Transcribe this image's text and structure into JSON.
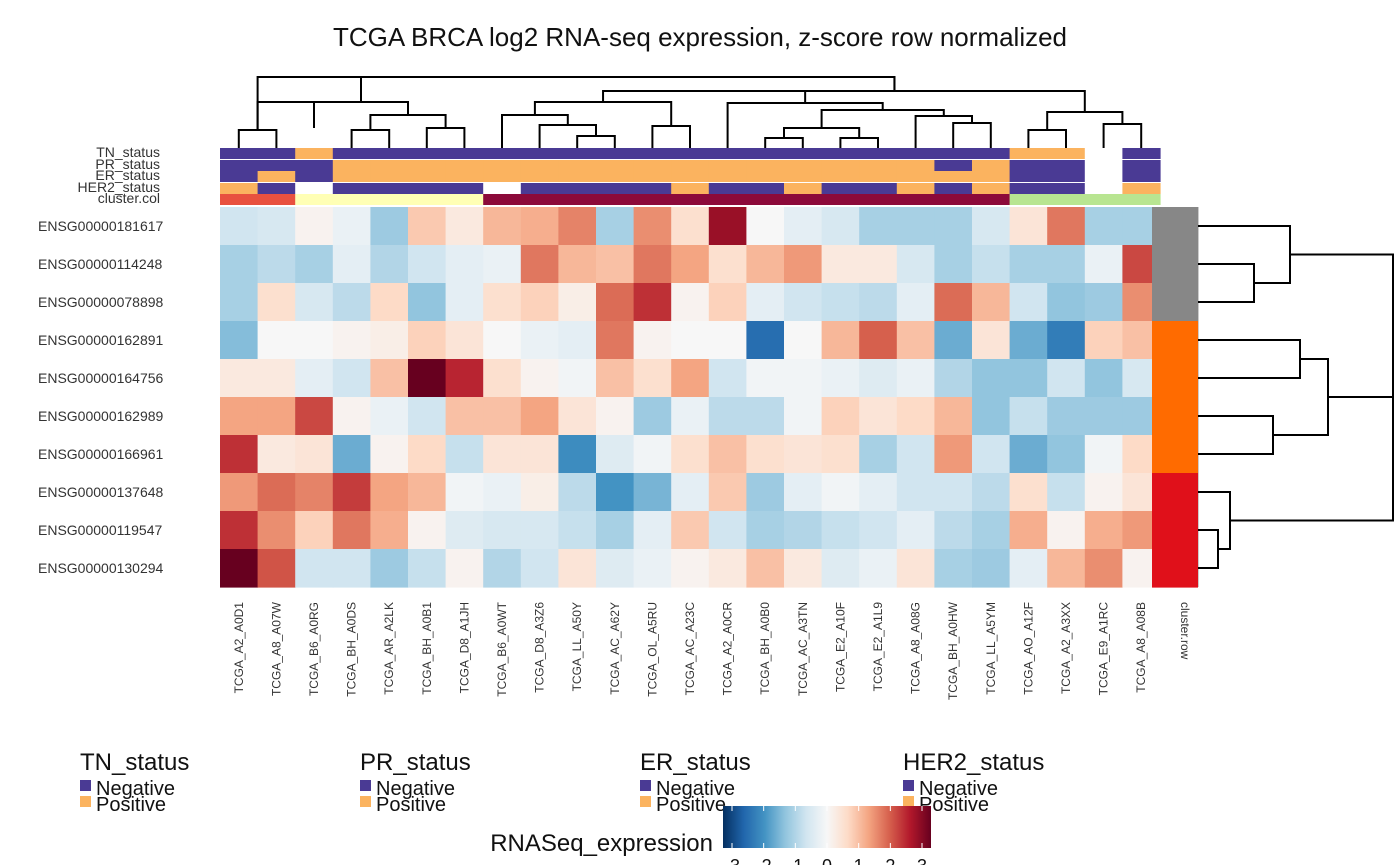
{
  "chart_data": {
    "type": "heatmap",
    "title": "TCGA BRCA log2 RNA-seq expression, z-score row normalized",
    "columns": [
      "TCGA_A2_A0D1",
      "TCGA_A8_A07W",
      "TCGA_B6_A0RG",
      "TCGA_BH_A0DS",
      "TCGA_AR_A2LK",
      "TCGA_BH_A0B1",
      "TCGA_D8_A1JH",
      "TCGA_B6_A0WT",
      "TCGA_D8_A3Z6",
      "TCGA_LL_A50Y",
      "TCGA_AC_A62Y",
      "TCGA_OL_A5RU",
      "TCGA_AC_A23C",
      "TCGA_A2_A0CR",
      "TCGA_BH_A0B0",
      "TCGA_AC_A3TN",
      "TCGA_E2_A10F",
      "TCGA_E2_A1L9",
      "TCGA_A8_A08G",
      "TCGA_BH_A0HW",
      "TCGA_LL_A5YM",
      "TCGA_AO_A12F",
      "TCGA_A2_A3XX",
      "TCGA_E9_A1RC",
      "TCGA_A8_A08B"
    ],
    "rows": [
      "ENSG00000181617",
      "ENSG00000114248",
      "ENSG00000078898",
      "ENSG00000162891",
      "ENSG00000164756",
      "ENSG00000162989",
      "ENSG00000166961",
      "ENSG00000137648",
      "ENSG00000119547",
      "ENSG00000130294"
    ],
    "values": [
      [
        -0.6,
        -0.5,
        0.1,
        -0.2,
        -1.1,
        0.8,
        0.3,
        1.0,
        1.1,
        1.5,
        -1.0,
        1.4,
        0.5,
        2.6,
        0.0,
        -0.3,
        -0.5,
        -1.0,
        -1.0,
        -1.0,
        -0.5,
        0.4,
        1.6,
        -1.0,
        -1.0
      ],
      [
        -1.0,
        -0.8,
        -1.0,
        -0.3,
        -0.9,
        -0.6,
        -0.3,
        -0.2,
        1.6,
        1.0,
        0.9,
        1.6,
        1.2,
        0.5,
        1.0,
        1.3,
        0.3,
        0.3,
        -0.5,
        -1.0,
        -0.7,
        -1.0,
        -1.0,
        -0.2,
        2.0
      ],
      [
        -1.0,
        0.5,
        -0.5,
        -0.8,
        0.6,
        -1.2,
        -0.3,
        0.5,
        0.7,
        0.2,
        1.7,
        2.2,
        0.1,
        0.7,
        -0.3,
        -0.6,
        -0.7,
        -0.8,
        -0.3,
        1.7,
        1.0,
        -0.6,
        -1.2,
        -1.1,
        1.4
      ],
      [
        -1.3,
        0.0,
        0.0,
        0.1,
        0.2,
        0.7,
        0.4,
        0.0,
        -0.2,
        -0.3,
        1.6,
        0.1,
        0.0,
        0.0,
        -2.3,
        0.0,
        1.0,
        1.8,
        0.9,
        -1.5,
        0.4,
        -1.5,
        -2.1,
        0.7,
        0.9
      ],
      [
        0.3,
        0.3,
        -0.3,
        -0.6,
        0.9,
        3.0,
        2.3,
        0.5,
        0.1,
        -0.1,
        0.9,
        0.5,
        1.2,
        -0.6,
        -0.1,
        -0.1,
        -0.2,
        -0.4,
        -0.2,
        -0.9,
        -1.2,
        -1.2,
        -0.6,
        -1.2,
        -0.5
      ],
      [
        1.2,
        1.2,
        2.0,
        0.1,
        -0.2,
        -0.6,
        0.9,
        0.9,
        1.2,
        0.4,
        0.1,
        -1.1,
        -0.2,
        -0.8,
        -0.8,
        -0.1,
        0.7,
        0.4,
        0.6,
        1.0,
        -1.2,
        -0.7,
        -1.1,
        -1.1,
        -1.1
      ],
      [
        2.2,
        0.3,
        0.4,
        -1.5,
        0.1,
        0.6,
        -0.7,
        0.4,
        0.4,
        -1.9,
        -0.4,
        -0.1,
        0.5,
        0.9,
        0.5,
        0.4,
        0.5,
        -1.0,
        -0.6,
        1.3,
        -0.6,
        -1.5,
        -1.2,
        -0.1,
        0.6
      ],
      [
        1.3,
        1.7,
        1.5,
        2.1,
        1.2,
        1.0,
        -0.1,
        -0.2,
        0.2,
        -0.8,
        -1.8,
        -1.4,
        -0.3,
        0.8,
        -1.1,
        -0.3,
        -0.1,
        -0.3,
        -0.6,
        -0.6,
        -0.8,
        0.5,
        -0.7,
        0.1,
        0.4
      ],
      [
        2.2,
        1.4,
        0.7,
        1.6,
        1.1,
        0.1,
        -0.4,
        -0.5,
        -0.5,
        -0.7,
        -1.0,
        -0.3,
        0.8,
        -0.6,
        -1.0,
        -0.9,
        -0.7,
        -0.6,
        -0.3,
        -0.8,
        -1.0,
        1.1,
        0.1,
        1.1,
        1.3
      ],
      [
        3.0,
        1.9,
        -0.6,
        -0.6,
        -1.1,
        -0.7,
        0.1,
        -0.9,
        -0.6,
        0.4,
        -0.4,
        -0.2,
        0.1,
        0.3,
        0.9,
        0.3,
        -0.4,
        -0.2,
        0.4,
        -1.0,
        -1.1,
        -0.3,
        1.0,
        1.4,
        0.1
      ]
    ],
    "column_annotations": {
      "TN_status": [
        "Negative",
        "Negative",
        "Positive",
        "Negative",
        "Negative",
        "Negative",
        "Negative",
        "Negative",
        "Negative",
        "Negative",
        "Negative",
        "Negative",
        "Negative",
        "Negative",
        "Negative",
        "Negative",
        "Negative",
        "Negative",
        "Negative",
        "Negative",
        "Negative",
        "Positive",
        "Positive",
        "",
        "Negative"
      ],
      "PR_status": [
        "Negative",
        "Negative",
        "Negative",
        "Positive",
        "Positive",
        "Positive",
        "Positive",
        "Positive",
        "Positive",
        "Positive",
        "Positive",
        "Positive",
        "Positive",
        "Positive",
        "Positive",
        "Positive",
        "Positive",
        "Positive",
        "Positive",
        "Negative",
        "Positive",
        "Negative",
        "Negative",
        "",
        "Negative"
      ],
      "ER_status": [
        "Negative",
        "Positive",
        "Negative",
        "Positive",
        "Positive",
        "Positive",
        "Positive",
        "Positive",
        "Positive",
        "Positive",
        "Positive",
        "Positive",
        "Positive",
        "Positive",
        "Positive",
        "Positive",
        "Positive",
        "Positive",
        "Positive",
        "Positive",
        "Positive",
        "Negative",
        "Negative",
        "",
        "Negative"
      ],
      "HER2_status": [
        "Positive",
        "Negative",
        "",
        "Negative",
        "Negative",
        "Negative",
        "Negative",
        "",
        "Negative",
        "Negative",
        "Negative",
        "Negative",
        "Positive",
        "Negative",
        "Negative",
        "Positive",
        "Negative",
        "Negative",
        "Positive",
        "Negative",
        "Positive",
        "Negative",
        "Negative",
        "",
        "Positive"
      ],
      "cluster.col": [
        1,
        1,
        2,
        2,
        2,
        2,
        2,
        3,
        3,
        3,
        3,
        3,
        3,
        3,
        3,
        3,
        3,
        3,
        3,
        3,
        3,
        4,
        4,
        4,
        4
      ]
    },
    "column_annotation_labels": [
      "TN_status",
      "PR_status",
      "ER_status",
      "HER2_status",
      "cluster.col"
    ],
    "row_annotation_label": "cluster.row",
    "row_clusters": [
      1,
      1,
      1,
      2,
      2,
      2,
      2,
      3,
      3,
      3
    ],
    "colors": {
      "Negative": "#4A3A94",
      "Positive": "#FBB35F",
      "cluster_col": [
        "#E8513F",
        "#FFFFB5",
        "#8C0A3A",
        "#B8E591"
      ],
      "cluster_row": [
        "#878787",
        "#FF6B00",
        "#E0101A"
      ],
      "dendrogram": "#000000",
      "scale": [
        "#053061",
        "#2166AC",
        "#4393C3",
        "#92C5DE",
        "#D1E5F0",
        "#F7F7F7",
        "#FDDBC7",
        "#F4A582",
        "#D6604D",
        "#B2182B",
        "#67001F"
      ]
    },
    "legends": [
      {
        "title": "TN_status",
        "items": [
          "Negative",
          "Positive"
        ]
      },
      {
        "title": "PR_status",
        "items": [
          "Negative",
          "Positive"
        ]
      },
      {
        "title": "ER_status",
        "items": [
          "Negative",
          "Positive"
        ]
      },
      {
        "title": "HER2_status",
        "items": [
          "Negative",
          "Positive"
        ]
      }
    ],
    "color_scale": {
      "title": "RNASeq_expression",
      "min": -3,
      "max": 3,
      "ticks": [
        -3,
        -2,
        -1,
        0,
        1,
        2,
        3
      ]
    }
  }
}
